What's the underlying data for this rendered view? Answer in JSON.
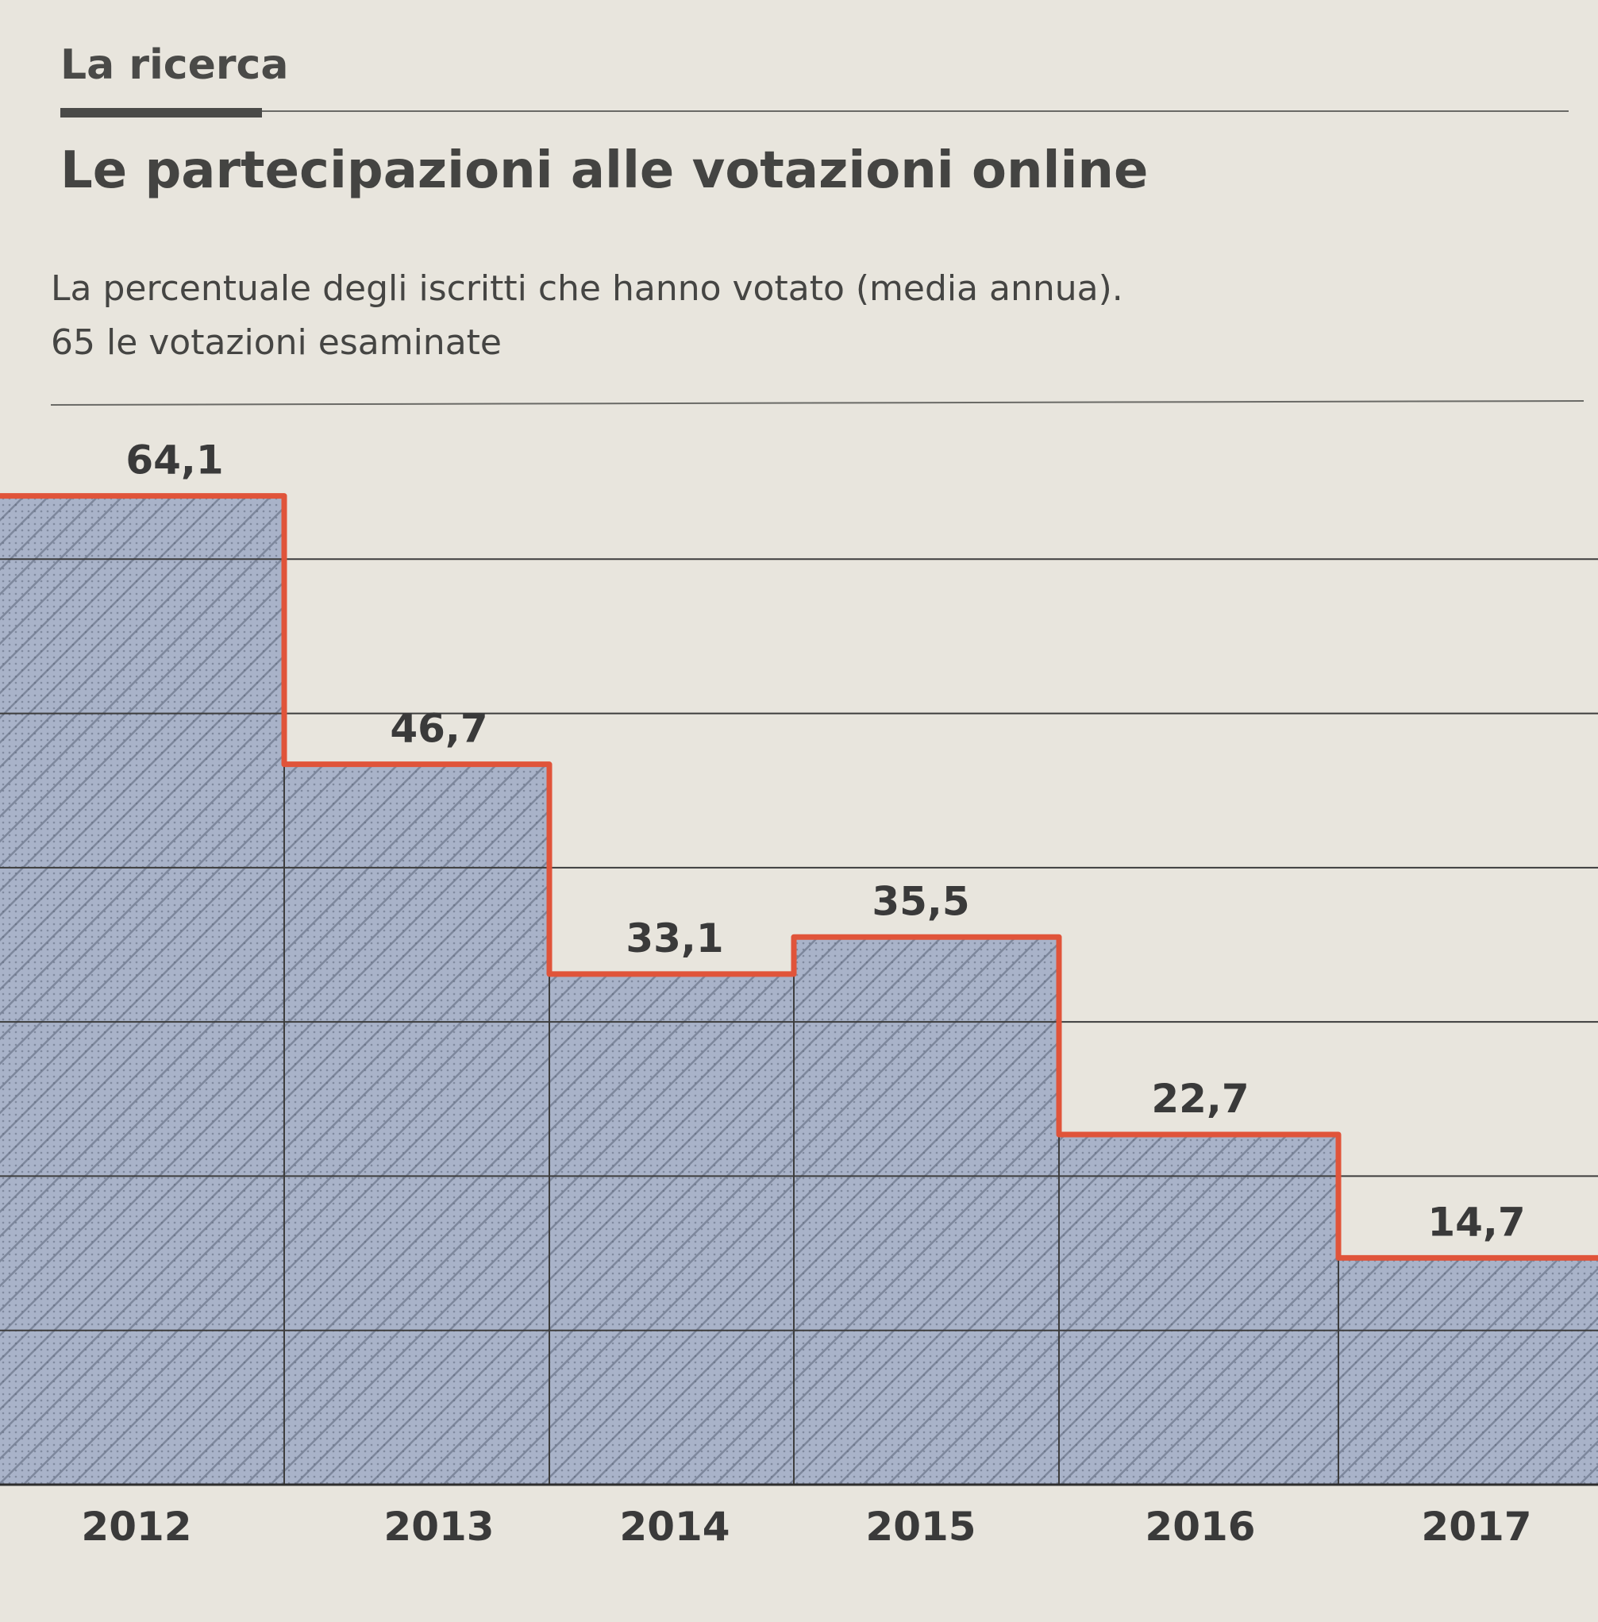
{
  "header": {
    "section_label": "La ricerca",
    "title": "Le partecipazioni alle votazioni online",
    "subtitle_line1": "La percentuale degli iscritti che hanno votato (media annua).",
    "subtitle_line2": "65 le votazioni esaminate"
  },
  "colors": {
    "background": "#e8e5dd",
    "fill": "#a9b3c9",
    "step_line": "#e0543a",
    "grid": "#3d3d3d",
    "text": "#3a3a3a"
  },
  "chart_data": {
    "type": "area",
    "style": "step",
    "categories": [
      "2012",
      "2013",
      "2014",
      "2015",
      "2016",
      "2017"
    ],
    "values": [
      64.1,
      46.7,
      33.1,
      35.5,
      22.7,
      14.7
    ],
    "value_labels": [
      "64,1",
      "46,7",
      "33,1",
      "35,5",
      "22,7",
      "14,7"
    ],
    "ylim": [
      0,
      70
    ],
    "gridlines": [
      10,
      20,
      30,
      40,
      50,
      60
    ],
    "grid": true,
    "xlabel": "",
    "ylabel": "",
    "unit": "% iscritti che hanno votato"
  }
}
